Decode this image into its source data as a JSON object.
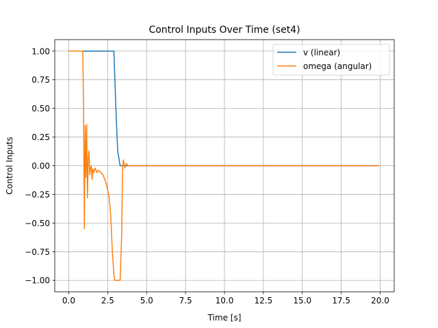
{
  "chart_data": {
    "type": "line",
    "title": "Control Inputs Over Time (set4)",
    "xlabel": "Time [s]",
    "ylabel": "Control Inputs",
    "xlim": [
      -0.9,
      20.9
    ],
    "ylim": [
      -1.1,
      1.1
    ],
    "xticks": [
      0,
      2.5,
      5,
      7.5,
      10,
      12.5,
      15,
      17.5,
      20
    ],
    "xtick_labels": [
      "0.0",
      "2.5",
      "5.0",
      "7.5",
      "10.0",
      "12.5",
      "15.0",
      "17.5",
      "20.0"
    ],
    "yticks": [
      -1,
      -0.75,
      -0.5,
      -0.25,
      0,
      0.25,
      0.5,
      0.75,
      1
    ],
    "ytick_labels": [
      "−1.00",
      "−0.75",
      "−0.50",
      "−0.25",
      "0.00",
      "0.25",
      "0.50",
      "0.75",
      "1.00"
    ],
    "grid": true,
    "legend_position": "top-right",
    "series": [
      {
        "name": "v (linear)",
        "color": "#1f77b4",
        "points": [
          [
            0,
            1.0
          ],
          [
            2.9,
            1.0
          ],
          [
            3.0,
            0.6
          ],
          [
            3.1,
            0.25
          ],
          [
            3.15,
            0.12
          ],
          [
            3.3,
            0.0
          ],
          [
            19.9,
            0.0
          ]
        ]
      },
      {
        "name": "omega (angular)",
        "color": "#ff7f0e",
        "points": [
          [
            0,
            1.0
          ],
          [
            0.9,
            1.0
          ],
          [
            0.95,
            0.5
          ],
          [
            1.0,
            -0.55
          ],
          [
            1.05,
            0.35
          ],
          [
            1.1,
            -0.1
          ],
          [
            1.15,
            0.36
          ],
          [
            1.2,
            -0.28
          ],
          [
            1.25,
            0.05
          ],
          [
            1.3,
            0.13
          ],
          [
            1.35,
            -0.08
          ],
          [
            1.4,
            -0.02
          ],
          [
            1.45,
            0.0
          ],
          [
            1.5,
            -0.12
          ],
          [
            1.55,
            -0.03
          ],
          [
            1.6,
            -0.06
          ],
          [
            1.7,
            -0.02
          ],
          [
            1.8,
            -0.06
          ],
          [
            1.9,
            -0.04
          ],
          [
            2.0,
            -0.05
          ],
          [
            2.2,
            -0.08
          ],
          [
            2.4,
            -0.15
          ],
          [
            2.6,
            -0.28
          ],
          [
            2.7,
            -0.45
          ],
          [
            2.8,
            -0.75
          ],
          [
            2.9,
            -0.95
          ],
          [
            2.95,
            -1.0
          ],
          [
            3.3,
            -1.0
          ],
          [
            3.4,
            -0.6
          ],
          [
            3.45,
            -0.05
          ],
          [
            3.5,
            0.05
          ],
          [
            3.6,
            -0.02
          ],
          [
            3.7,
            0.02
          ],
          [
            3.8,
            0.0
          ],
          [
            4.0,
            0.0
          ],
          [
            19.9,
            0.0
          ]
        ]
      }
    ]
  }
}
